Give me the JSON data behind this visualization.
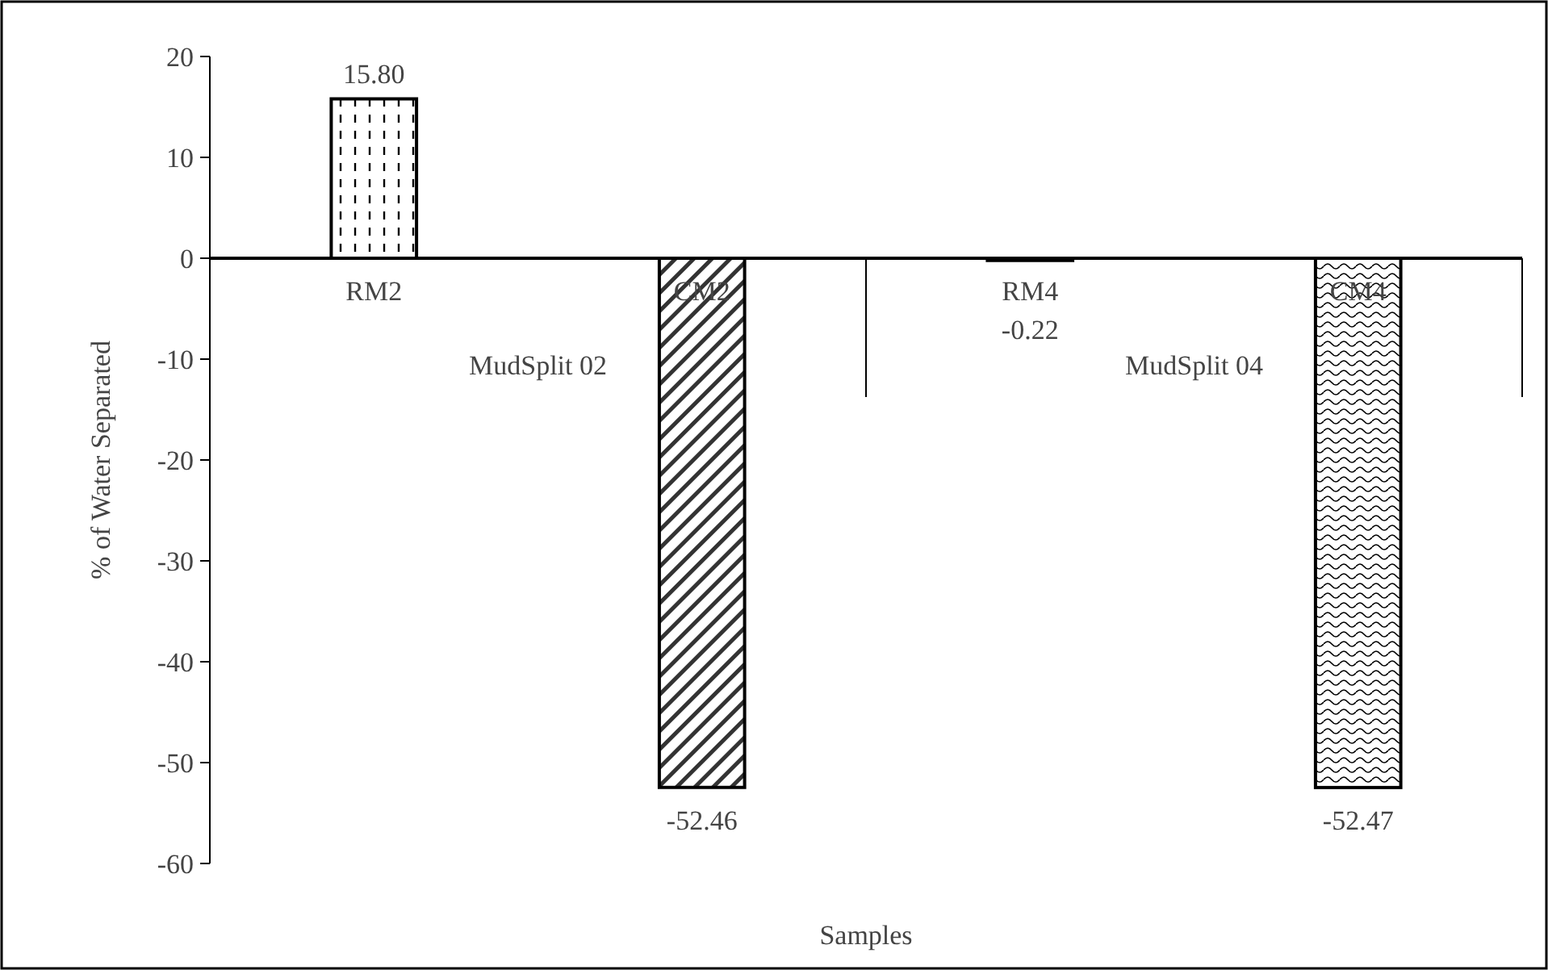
{
  "chart_data": {
    "type": "bar",
    "xlabel": "Samples",
    "ylabel": "% of Water Separated",
    "categories": [
      "RM2",
      "CM2",
      "RM4",
      "CM4"
    ],
    "values": [
      15.8,
      -52.46,
      -0.22,
      -52.47
    ],
    "value_labels": [
      "15.80",
      "-52.46",
      "-0.22",
      "-52.47"
    ],
    "colors": [
      "#000000",
      "#000000",
      "#000000",
      "#000000"
    ],
    "annotations": [
      "MudSplit 02",
      "MudSplit 04"
    ],
    "ylim": [
      -60,
      20
    ],
    "yticks": [
      -60,
      -50,
      -40,
      -30,
      -20,
      -10,
      0,
      10,
      20
    ],
    "grid": false
  }
}
